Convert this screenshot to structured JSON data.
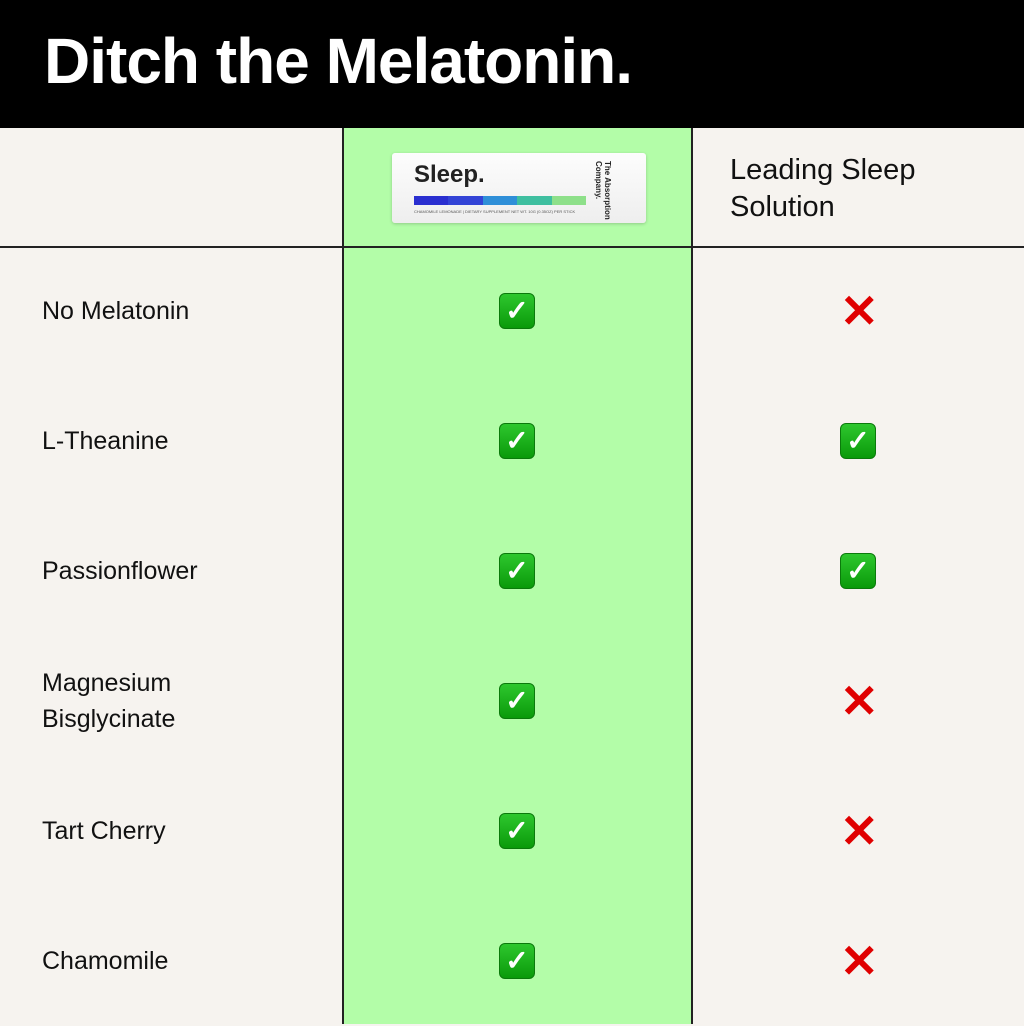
{
  "title": "Ditch the Melatonin.",
  "columns": {
    "product": {
      "brand": "Sleep.",
      "company": "The Absorption Company.",
      "fine_print": "CHAMOMILE LEMONADE | DIETARY SUPPLEMENT   NET WT. 10G (0.35OZ) PER STICK",
      "stripe_colors": [
        "#2a2fd0",
        "#3344d6",
        "#2f8fd8",
        "#3fbfa0",
        "#8ee08a"
      ]
    },
    "competitor": "Leading Sleep Solution"
  },
  "colors": {
    "highlight": "#b3fda8",
    "check": "#12b012",
    "cross": "#e00000"
  },
  "rows": [
    {
      "label": "No Melatonin",
      "product": "check",
      "competitor": "cross"
    },
    {
      "label": "L-Theanine",
      "product": "check",
      "competitor": "check"
    },
    {
      "label": "Passionflower",
      "product": "check",
      "competitor": "check"
    },
    {
      "label": "Magnesium Bisglycinate",
      "product": "check",
      "competitor": "cross"
    },
    {
      "label": "Tart Cherry",
      "product": "check",
      "competitor": "cross"
    },
    {
      "label": "Chamomile",
      "product": "check",
      "competitor": "cross"
    }
  ]
}
